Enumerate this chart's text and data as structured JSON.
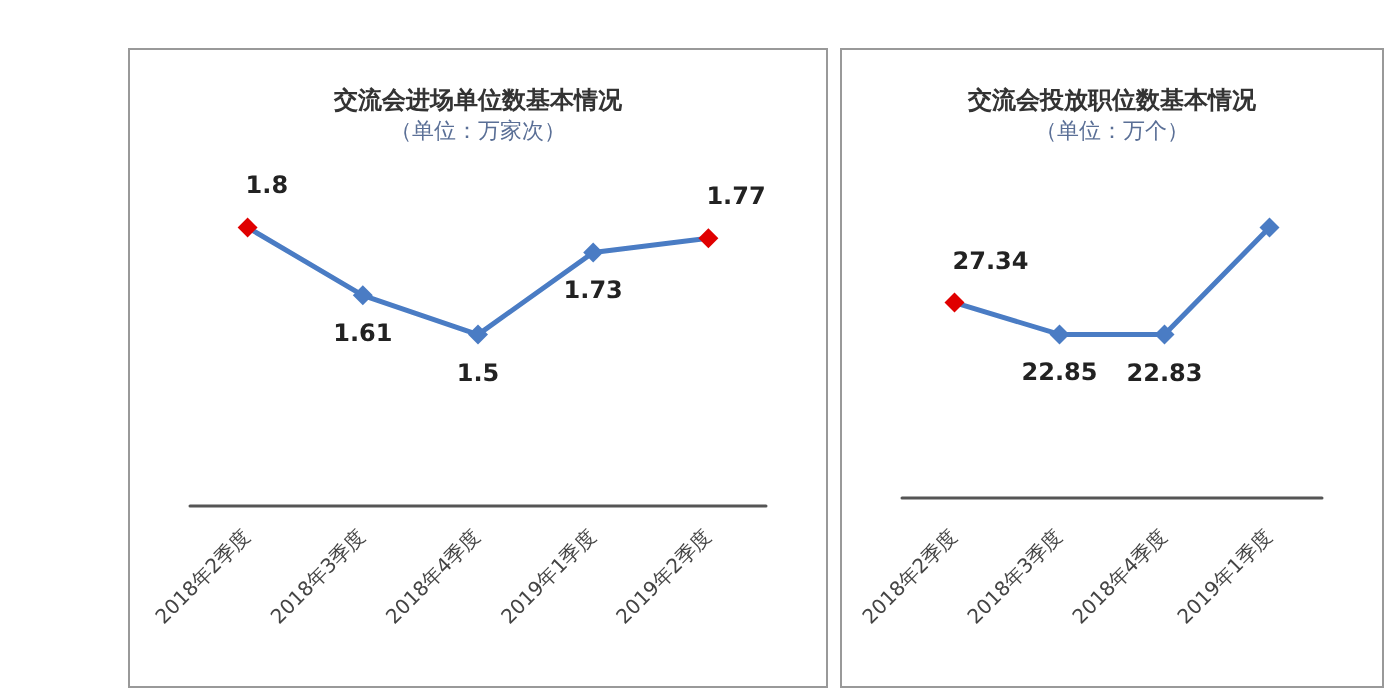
{
  "chart_data": [
    {
      "type": "line",
      "title": "交流会进场单位数基本情况",
      "subtitle": "（单位：万家次）",
      "categories": [
        "2018年2季度",
        "2018年3季度",
        "2018年4季度",
        "2019年1季度",
        "2019年2季度"
      ],
      "marker": "diamond",
      "data_labels": true,
      "series": [
        {
          "color": "#4a7cc4",
          "colors": [
            "#e00000",
            "#4a7cc4",
            "#4a7cc4",
            "#4a7cc4",
            "#e00000"
          ],
          "values": [
            1.8,
            1.61,
            1.5,
            1.73,
            1.77
          ]
        }
      ]
    },
    {
      "type": "line",
      "title": "交流会投放职位数基本情况",
      "subtitle": "（单位：万个）",
      "categories": [
        "2018年2季度",
        "2018年3季度",
        "2018年4季度",
        "2019年1季度"
      ],
      "marker": "diamond",
      "series": [
        {
          "color": "#4a7cc4",
          "colors": [
            "#e00000",
            "#4a7cc4",
            "#4a7cc4",
            "#4a7cc4"
          ],
          "values": [
            27.34,
            22.85,
            22.83,
            37.9
          ],
          "value_labels": [
            "27.34",
            "22.85",
            "22.83",
            null
          ]
        }
      ]
    }
  ]
}
